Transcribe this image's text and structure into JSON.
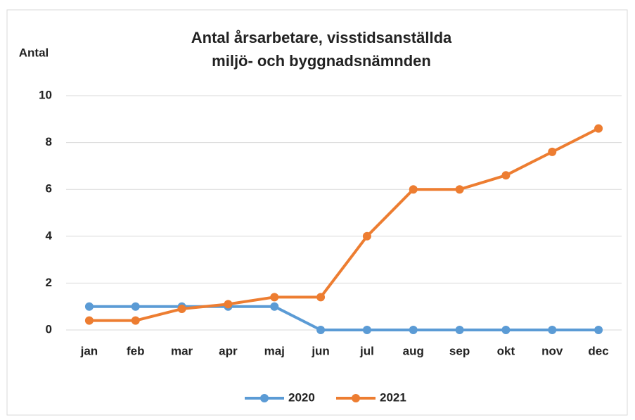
{
  "chart_data": {
    "type": "line",
    "title": [
      "Antal årsarbetare, visstidsanställda",
      "miljö- och byggnadsnämnden"
    ],
    "y_label": "Antal",
    "categories": [
      "jan",
      "feb",
      "mar",
      "apr",
      "maj",
      "jun",
      "jul",
      "aug",
      "sep",
      "okt",
      "nov",
      "dec"
    ],
    "series": [
      {
        "name": "2020",
        "color": "#5b9bd5",
        "values": [
          1,
          1,
          1,
          1,
          1,
          0,
          0,
          0,
          0,
          0,
          0,
          0
        ]
      },
      {
        "name": "2021",
        "color": "#ed7d31",
        "values": [
          0.4,
          0.4,
          0.9,
          1.1,
          1.4,
          1.4,
          4.0,
          6.0,
          6.0,
          6.6,
          7.6,
          8.6
        ]
      }
    ],
    "ylim": [
      0,
      10
    ],
    "yticks": [
      0,
      2,
      4,
      6,
      8,
      10
    ],
    "grid": true,
    "legend": "bottom"
  }
}
